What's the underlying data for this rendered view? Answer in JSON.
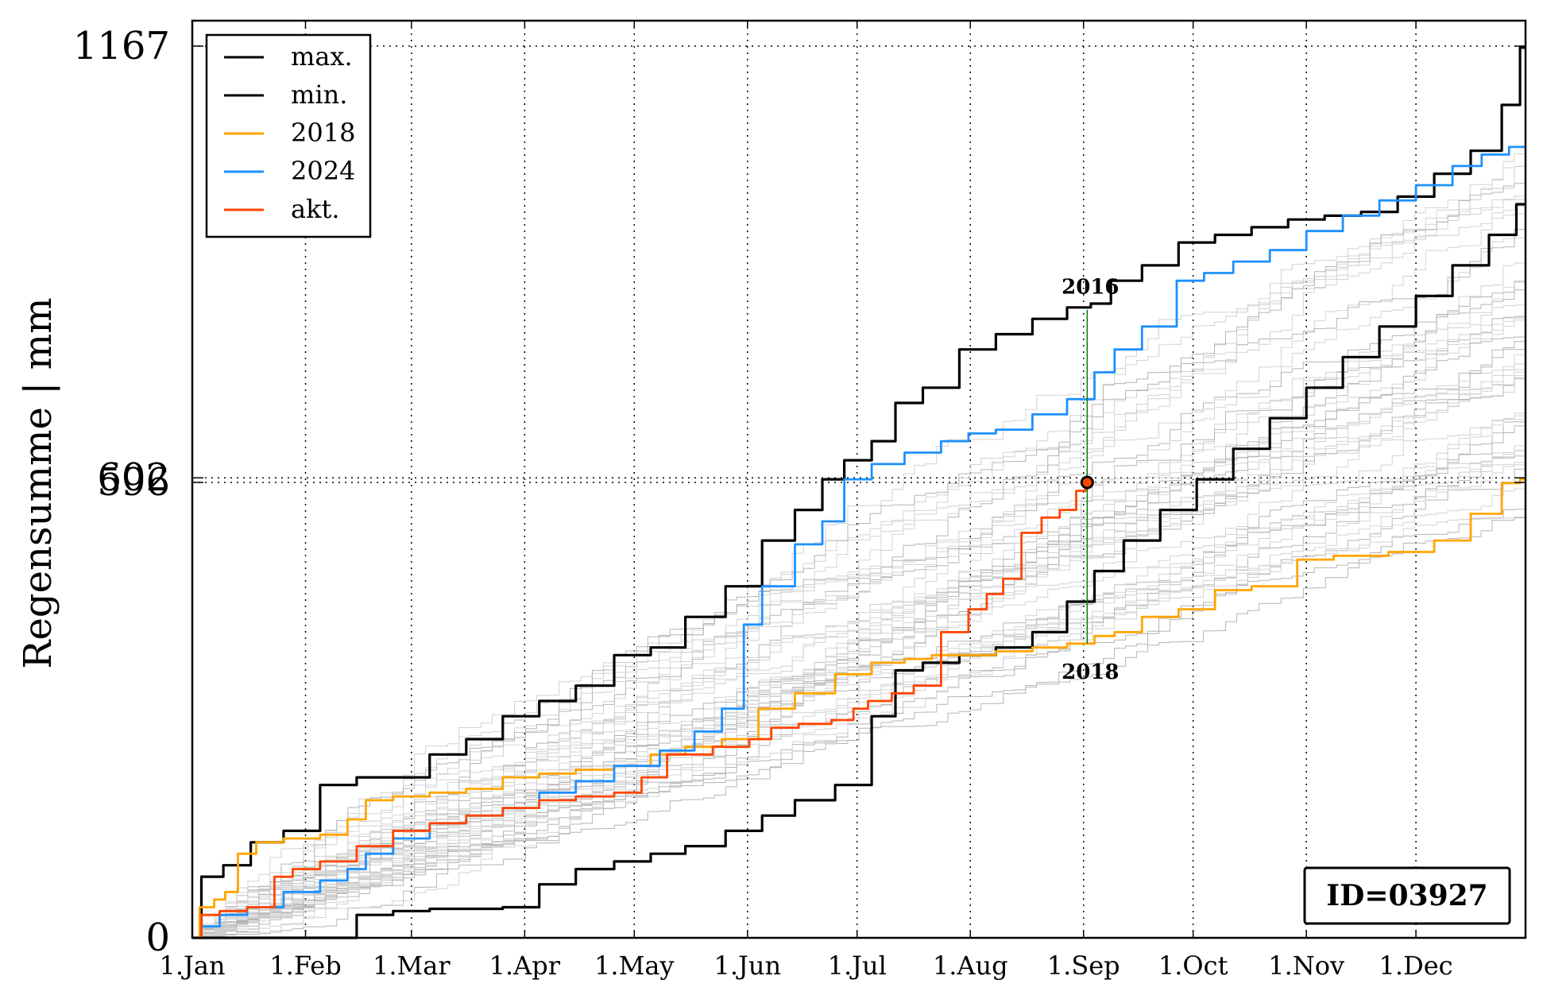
{
  "chart_data": {
    "type": "line",
    "ylabel": "Regensumme | mm",
    "ylim": [
      0,
      1167
    ],
    "y_ticks": [
      "0",
      "1167"
    ],
    "y_marks": [
      {
        "label": "602",
        "value": 602
      },
      {
        "label": "596",
        "value": 596
      }
    ],
    "x_ticks": [
      {
        "label": "1.Jan",
        "day": 0
      },
      {
        "label": "1.Feb",
        "day": 31
      },
      {
        "label": "1.Mar",
        "day": 60
      },
      {
        "label": "1.Apr",
        "day": 91
      },
      {
        "label": "1.May",
        "day": 121
      },
      {
        "label": "1.Jun",
        "day": 152
      },
      {
        "label": "1.Jul",
        "day": 182
      },
      {
        "label": "1.Aug",
        "day": 213
      },
      {
        "label": "1.Sep",
        "day": 244
      },
      {
        "label": "1.Oct",
        "day": 274
      },
      {
        "label": "1.Nov",
        "day": 305
      },
      {
        "label": "1.Dec",
        "day": 335
      }
    ],
    "grid": true,
    "legend_position": "top-left",
    "series": [
      {
        "name": "max.",
        "color": "#000000",
        "width": 3.2,
        "x": [
          0,
          5,
          12,
          20,
          30,
          40,
          50,
          60,
          70,
          80,
          90,
          100,
          110,
          121,
          130,
          140,
          152,
          160,
          170,
          175,
          182,
          190,
          195,
          205,
          215,
          225,
          235,
          244,
          248,
          255,
          265,
          275,
          285,
          295,
          305,
          315,
          325,
          335,
          345,
          355,
          362,
          365
        ],
        "y": [
          0,
          80,
          95,
          125,
          140,
          200,
          210,
          210,
          240,
          260,
          290,
          310,
          330,
          370,
          380,
          420,
          460,
          520,
          560,
          600,
          625,
          650,
          700,
          720,
          770,
          790,
          810,
          825,
          830,
          860,
          880,
          910,
          920,
          930,
          940,
          945,
          950,
          970,
          1000,
          1030,
          1090,
          1165
        ]
      },
      {
        "name": "min.",
        "color": "#000000",
        "width": 3.2,
        "x": [
          0,
          40,
          50,
          60,
          70,
          80,
          90,
          100,
          110,
          121,
          130,
          140,
          152,
          160,
          170,
          182,
          190,
          195,
          205,
          215,
          225,
          235,
          244,
          250,
          260,
          270,
          280,
          290,
          300,
          310,
          320,
          330,
          340,
          350,
          360,
          365
        ],
        "y": [
          0,
          0,
          30,
          35,
          38,
          38,
          40,
          70,
          90,
          100,
          110,
          120,
          140,
          160,
          180,
          200,
          290,
          350,
          360,
          370,
          380,
          400,
          440,
          480,
          520,
          560,
          600,
          640,
          680,
          720,
          760,
          800,
          840,
          880,
          920,
          960
        ]
      },
      {
        "name": "2018",
        "color": "#ffa500",
        "width": 2.8,
        "x": [
          0,
          4,
          8,
          10,
          15,
          20,
          30,
          40,
          45,
          50,
          60,
          70,
          80,
          90,
          100,
          110,
          121,
          130,
          140,
          150,
          160,
          170,
          182,
          190,
          200,
          205,
          215,
          225,
          235,
          244,
          250,
          255,
          265,
          275,
          285,
          295,
          300,
          305,
          320,
          335,
          345,
          355,
          362,
          365
        ],
        "y": [
          0,
          40,
          50,
          60,
          110,
          125,
          130,
          135,
          155,
          180,
          185,
          190,
          195,
          210,
          215,
          220,
          225,
          240,
          250,
          260,
          300,
          320,
          345,
          360,
          365,
          370,
          370,
          375,
          380,
          385,
          395,
          400,
          420,
          430,
          455,
          460,
          460,
          495,
          500,
          505,
          520,
          555,
          595,
          600
        ]
      },
      {
        "name": "2024",
        "color": "#1e90ff",
        "width": 2.8,
        "x": [
          0,
          5,
          10,
          20,
          30,
          40,
          45,
          50,
          60,
          70,
          80,
          90,
          100,
          110,
          121,
          135,
          140,
          150,
          152,
          160,
          170,
          175,
          182,
          190,
          200,
          210,
          215,
          225,
          235,
          244,
          250,
          255,
          265,
          274,
          280,
          290,
          300,
          310,
          320,
          330,
          340,
          350,
          356,
          365
        ],
        "y": [
          0,
          15,
          30,
          40,
          60,
          75,
          90,
          110,
          130,
          150,
          160,
          170,
          190,
          205,
          225,
          245,
          270,
          300,
          410,
          460,
          515,
          545,
          600,
          620,
          635,
          650,
          660,
          665,
          685,
          705,
          740,
          770,
          800,
          860,
          870,
          885,
          900,
          925,
          945,
          965,
          985,
          1010,
          1025,
          1035
        ]
      },
      {
        "name": "akt.",
        "color": "#ff4500",
        "width": 2.8,
        "x": [
          0,
          5,
          10,
          20,
          25,
          30,
          40,
          50,
          60,
          70,
          80,
          90,
          100,
          110,
          121,
          125,
          135,
          150,
          155,
          162,
          170,
          180,
          182,
          188,
          195,
          200,
          210,
          215,
          220,
          224,
          230,
          235,
          240,
          244,
          245
        ],
        "y": [
          0,
          30,
          35,
          40,
          80,
          90,
          100,
          120,
          140,
          150,
          160,
          170,
          180,
          185,
          190,
          210,
          240,
          250,
          260,
          275,
          280,
          285,
          300,
          310,
          320,
          330,
          400,
          430,
          450,
          470,
          530,
          550,
          560,
          585,
          596
        ]
      }
    ],
    "marker": {
      "x": 245,
      "y": 596
    },
    "annotation_line": {
      "x": 245,
      "y_top": 822,
      "y_bottom": 385,
      "color": "#008000",
      "label_top": "2016",
      "label_bottom": "2018"
    },
    "id_box": "ID=03927"
  }
}
